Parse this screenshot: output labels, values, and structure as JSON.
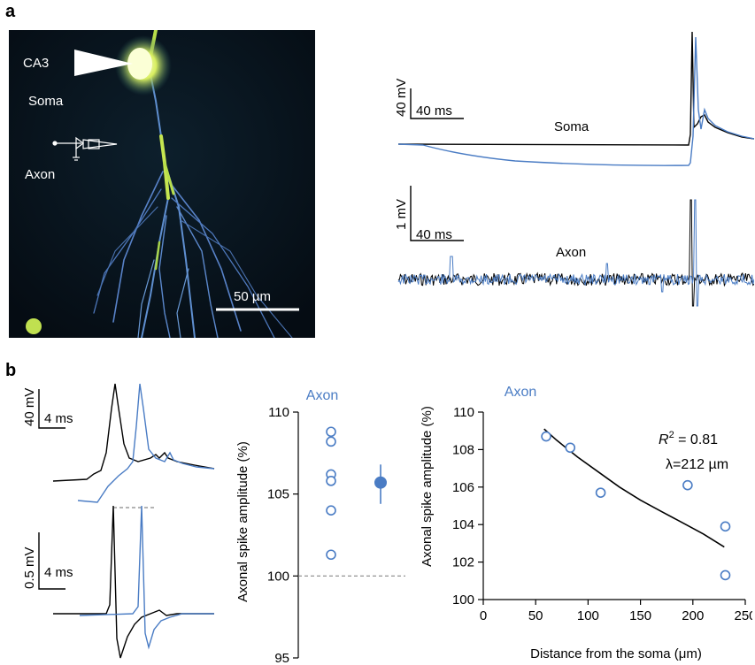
{
  "panel_a": {
    "label": "a",
    "micro": {
      "ca3": "CA3",
      "soma": "Soma",
      "axon": "Axon",
      "scalebar": "50 µm"
    },
    "soma_trace": {
      "scale_v": "40 mV",
      "scale_t": "40 ms",
      "label": "Soma"
    },
    "axon_trace": {
      "scale_v": "1 mV",
      "scale_t": "40 ms",
      "label": "Axon"
    }
  },
  "panel_b": {
    "label": "b",
    "traces": {
      "top_scale_v": "40 mV",
      "top_scale_t": "4 ms",
      "bottom_scale_v": "0.5 mV",
      "bottom_scale_t": "4 ms"
    }
  },
  "colors": {
    "blue": "#4a7cc4",
    "black": "#000000",
    "dashed": "#888888"
  },
  "chart_data": [
    {
      "type": "scatter",
      "title": "Axon",
      "ylabel": "Axonal spike amplitude (%)",
      "ylim": [
        95,
        110
      ],
      "yticks": [
        "95",
        "100",
        "105",
        "110"
      ],
      "reference_line": 100,
      "points": [
        108.8,
        108.2,
        106.2,
        105.8,
        104.0,
        101.3
      ],
      "mean": 105.7,
      "error": [
        104.4,
        106.8
      ]
    },
    {
      "type": "scatter",
      "title": "Axon",
      "xlabel": "Distance from the soma (μm)",
      "ylabel": "Axonal spike amplitude (%)",
      "xlim": [
        0,
        250
      ],
      "ylim": [
        100,
        110
      ],
      "xticks": [
        "0",
        "50",
        "100",
        "150",
        "200",
        "250"
      ],
      "yticks": [
        "100",
        "102",
        "104",
        "106",
        "108",
        "110"
      ],
      "points": [
        [
          60,
          108.7
        ],
        [
          83,
          108.1
        ],
        [
          112,
          105.7
        ],
        [
          195,
          106.1
        ],
        [
          231,
          103.9
        ],
        [
          231,
          101.3
        ]
      ],
      "fit": [
        [
          58,
          109.1
        ],
        [
          70,
          108.5
        ],
        [
          90,
          107.6
        ],
        [
          110,
          106.8
        ],
        [
          130,
          106.0
        ],
        [
          150,
          105.3
        ],
        [
          170,
          104.7
        ],
        [
          190,
          104.1
        ],
        [
          210,
          103.5
        ],
        [
          230,
          102.8
        ]
      ],
      "annotation_r2_prefix": "R",
      "annotation_r2_sup": "2",
      "annotation_r2_value": " = 0.81",
      "annotation_lambda": "λ=212 µm"
    }
  ]
}
